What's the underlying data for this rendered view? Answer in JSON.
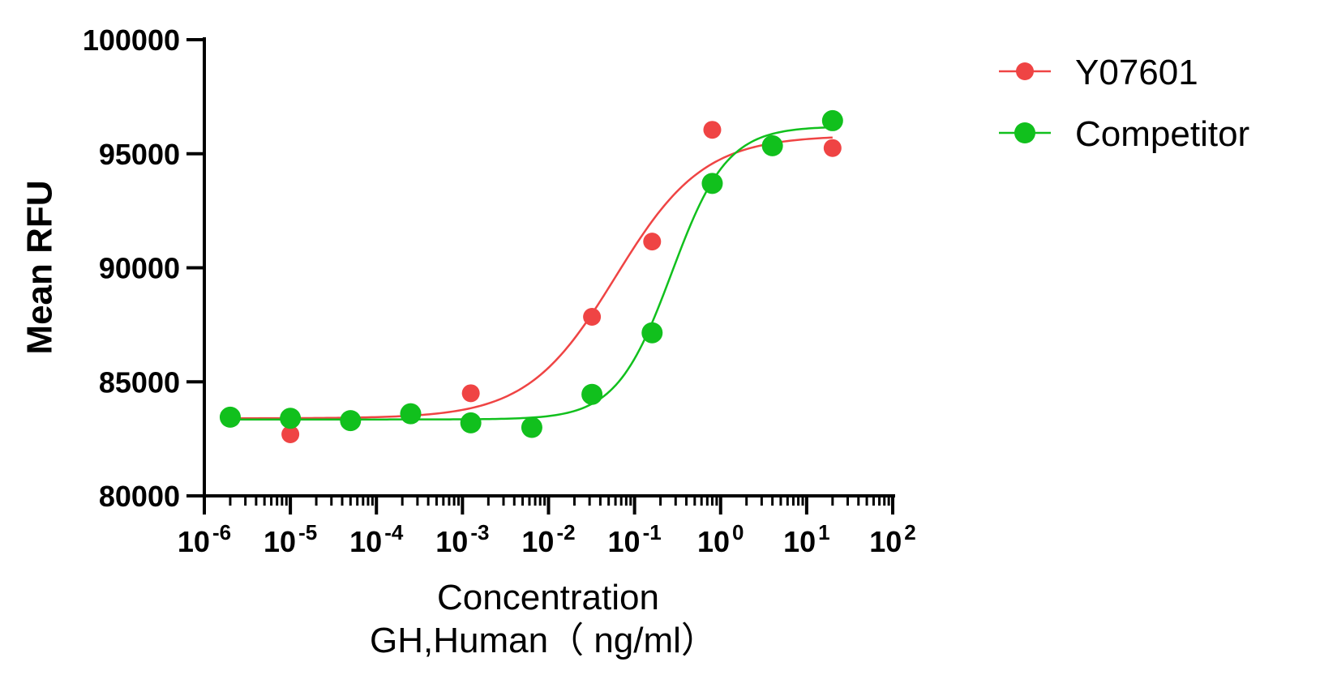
{
  "chart_data": {
    "type": "scatter",
    "xscale": "log",
    "xlim": [
      1e-06,
      100
    ],
    "ylim": [
      80000,
      100000
    ],
    "ylabel": "Mean RFU",
    "xlabel_lines": [
      "Concentration",
      "GH,Human（ ng/ml）"
    ],
    "yticks": [
      "80000",
      "85000",
      "90000",
      "95000",
      "100000"
    ],
    "xticks": [
      {
        "base": "10",
        "exp": "-6"
      },
      {
        "base": "10",
        "exp": "-5"
      },
      {
        "base": "10",
        "exp": "-4"
      },
      {
        "base": "10",
        "exp": "-3"
      },
      {
        "base": "10",
        "exp": "-2"
      },
      {
        "base": "10",
        "exp": "-1"
      },
      {
        "base": "10",
        "exp": "0"
      },
      {
        "base": "10",
        "exp": "1"
      },
      {
        "base": "10",
        "exp": "2"
      }
    ],
    "legend_position": "top-right",
    "series": [
      {
        "name": "Y07601",
        "color": "#ef4444",
        "points": [
          [
            2e-06,
            83450
          ],
          [
            1e-05,
            82700
          ],
          [
            5e-05,
            83250
          ],
          [
            0.00025,
            83550
          ],
          [
            0.00125,
            84500
          ],
          [
            0.032,
            87850
          ],
          [
            0.16,
            91150
          ],
          [
            0.8,
            96050
          ],
          [
            4,
            95350
          ],
          [
            20,
            95250
          ]
        ],
        "fit": {
          "bottom": 83400,
          "top": 95800,
          "ec50": 0.06,
          "hill": 0.85
        }
      },
      {
        "name": "Competitor",
        "color": "#11c01d",
        "points": [
          [
            2e-06,
            83450
          ],
          [
            1e-05,
            83400
          ],
          [
            5e-05,
            83300
          ],
          [
            0.00025,
            83600
          ],
          [
            0.00125,
            83200
          ],
          [
            0.0064,
            83000
          ],
          [
            0.032,
            84450
          ],
          [
            0.16,
            87150
          ],
          [
            0.8,
            93700
          ],
          [
            4,
            95350
          ],
          [
            20,
            96450
          ]
        ],
        "fit": {
          "bottom": 83350,
          "top": 96200,
          "ec50": 0.27,
          "hill": 1.35
        }
      }
    ]
  }
}
